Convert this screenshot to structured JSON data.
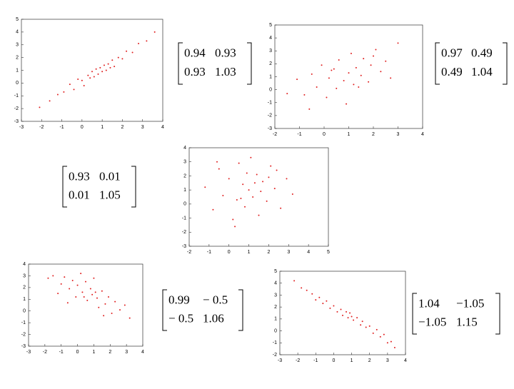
{
  "chart_data": [
    {
      "type": "scatter",
      "color": "#e02020",
      "xlim": [
        -3,
        4
      ],
      "ylim": [
        -3,
        5
      ],
      "xticks": [
        -3,
        -2,
        -1,
        0,
        1,
        2,
        3,
        4
      ],
      "yticks": [
        -3,
        -2,
        -1,
        0,
        1,
        2,
        3,
        4,
        5
      ],
      "x": [
        -2.1,
        -1.6,
        -1.2,
        -0.9,
        -0.6,
        -0.4,
        -0.2,
        0,
        0.1,
        0.3,
        0.4,
        0.5,
        0.6,
        0.7,
        0.8,
        0.9,
        1,
        1.1,
        1.2,
        1.3,
        1.4,
        1.5,
        1.6,
        1.8,
        2,
        2.2,
        2.5,
        2.8,
        3.2,
        3.6
      ],
      "y": [
        -1.9,
        -1.4,
        -0.9,
        -0.7,
        -0.1,
        -0.5,
        0.3,
        0.2,
        -0.2,
        0.6,
        0.4,
        0.9,
        0.5,
        1.1,
        0.7,
        1.2,
        0.9,
        1.4,
        1,
        1.5,
        1.2,
        1.8,
        1.3,
        2,
        1.9,
        2.5,
        2.4,
        3.1,
        3.3,
        4
      ],
      "matrix": [
        [
          "0.94",
          "0.93"
        ],
        [
          "0.93",
          "1.03"
        ]
      ]
    },
    {
      "type": "scatter",
      "color": "#e02020",
      "xlim": [
        -2,
        4
      ],
      "ylim": [
        -3,
        5
      ],
      "xticks": [
        -2,
        -1,
        0,
        1,
        2,
        3,
        4
      ],
      "yticks": [
        -3,
        -2,
        -1,
        0,
        1,
        2,
        3,
        4,
        5
      ],
      "x": [
        -1.5,
        -1.1,
        -0.8,
        -0.5,
        -0.3,
        -0.1,
        0.1,
        0.2,
        0.4,
        0.5,
        0.6,
        0.8,
        0.9,
        1,
        1.1,
        1.2,
        1.3,
        1.5,
        1.6,
        1.8,
        1.9,
        2.1,
        2.3,
        2.5,
        2.7,
        3,
        -0.6,
        0.3,
        1.4,
        2
      ],
      "y": [
        -0.3,
        0.8,
        -0.4,
        1.2,
        0.2,
        1.9,
        -0.6,
        0.9,
        1.6,
        0.1,
        2.3,
        0.7,
        -1.1,
        1.3,
        2.8,
        0.4,
        1.7,
        1.1,
        2.4,
        0.6,
        1.9,
        3.1,
        1.4,
        2.2,
        0.9,
        3.6,
        -1.5,
        1.5,
        0.2,
        2.6
      ],
      "matrix": [
        [
          "0.97",
          "0.49"
        ],
        [
          "0.49",
          "1.04"
        ]
      ]
    },
    {
      "type": "scatter",
      "color": "#e02020",
      "xlim": [
        -2,
        5
      ],
      "ylim": [
        -3,
        4
      ],
      "xticks": [
        -2,
        -1,
        0,
        1,
        2,
        3,
        4,
        5
      ],
      "yticks": [
        -3,
        -2,
        -1,
        0,
        1,
        2,
        3,
        4
      ],
      "x": [
        -1.2,
        -0.8,
        -0.5,
        -0.3,
        0,
        0.2,
        0.4,
        0.5,
        0.7,
        0.8,
        1,
        1.1,
        1.2,
        1.4,
        1.5,
        1.7,
        1.9,
        2.1,
        2.3,
        2.6,
        2.9,
        3.2,
        -0.6,
        0.3,
        0.9,
        1.6,
        2.4,
        1.3,
        0.6,
        2
      ],
      "y": [
        1.2,
        -0.4,
        2.5,
        0.6,
        1.8,
        -1.1,
        0.3,
        2.9,
        1.4,
        -0.2,
        1,
        3.3,
        0.5,
        2.1,
        -0.8,
        1.6,
        0.2,
        2.7,
        1.1,
        -0.3,
        1.8,
        0.7,
        3,
        -1.6,
        2.2,
        0.9,
        2.4,
        1.5,
        0.4,
        1.9
      ],
      "matrix": [
        [
          "0.93",
          "0.01"
        ],
        [
          "0.01",
          "1.05"
        ]
      ]
    },
    {
      "type": "scatter",
      "color": "#e02020",
      "xlim": [
        -3,
        4
      ],
      "ylim": [
        -3,
        4
      ],
      "xticks": [
        -3,
        -2,
        -1,
        0,
        1,
        2,
        3,
        4
      ],
      "yticks": [
        -3,
        -2,
        -1,
        0,
        1,
        2,
        3,
        4
      ],
      "x": [
        -1.8,
        -1.5,
        -1.2,
        -1,
        -0.8,
        -0.5,
        -0.3,
        -0.1,
        0,
        0.2,
        0.3,
        0.5,
        0.6,
        0.8,
        0.9,
        1,
        1.2,
        1.3,
        1.5,
        1.7,
        1.9,
        2.1,
        2.3,
        2.6,
        2.9,
        3.2,
        0.4,
        1.1,
        -0.6,
        1.6
      ],
      "y": [
        2.8,
        3,
        1.5,
        2.3,
        2.9,
        1.9,
        2.6,
        1.2,
        2.2,
        3.2,
        1.6,
        2.5,
        0.9,
        1.9,
        1.4,
        2.8,
        1.1,
        0.3,
        1.7,
        0.6,
        1.2,
        -0.2,
        0.8,
        0.1,
        0.5,
        -0.6,
        1.2,
        1.6,
        0.7,
        -0.4
      ],
      "matrix": [
        [
          "0.99",
          "− 0.5"
        ],
        [
          "− 0.5",
          "1.06"
        ]
      ]
    },
    {
      "type": "scatter",
      "color": "#e02020",
      "xlim": [
        -3,
        4
      ],
      "ylim": [
        -2,
        5
      ],
      "xticks": [
        -3,
        -2,
        -1,
        0,
        1,
        2,
        3,
        4
      ],
      "yticks": [
        -2,
        -1,
        0,
        1,
        2,
        3,
        4,
        5
      ],
      "x": [
        -2.2,
        -1.8,
        -1.5,
        -1.2,
        -1,
        -0.8,
        -0.6,
        -0.4,
        -0.2,
        0,
        0.2,
        0.4,
        0.5,
        0.7,
        0.8,
        1,
        1.1,
        1.3,
        1.5,
        1.6,
        1.8,
        2,
        2.2,
        2.4,
        2.6,
        2.8,
        3,
        3.2,
        3.4,
        0.9
      ],
      "y": [
        4.2,
        3.6,
        3.4,
        3.1,
        2.6,
        2.8,
        2.3,
        2.5,
        1.9,
        2.1,
        1.6,
        1.8,
        1.3,
        1.6,
        1.1,
        1.2,
        0.9,
        1.1,
        0.5,
        0.8,
        0.3,
        0.4,
        -0.2,
        0.1,
        -0.5,
        -0.3,
        -1,
        -0.9,
        -1.4,
        1.5
      ],
      "matrix": [
        [
          "1.04",
          "−1.05"
        ],
        [
          "−1.05",
          "1.15"
        ]
      ]
    }
  ]
}
